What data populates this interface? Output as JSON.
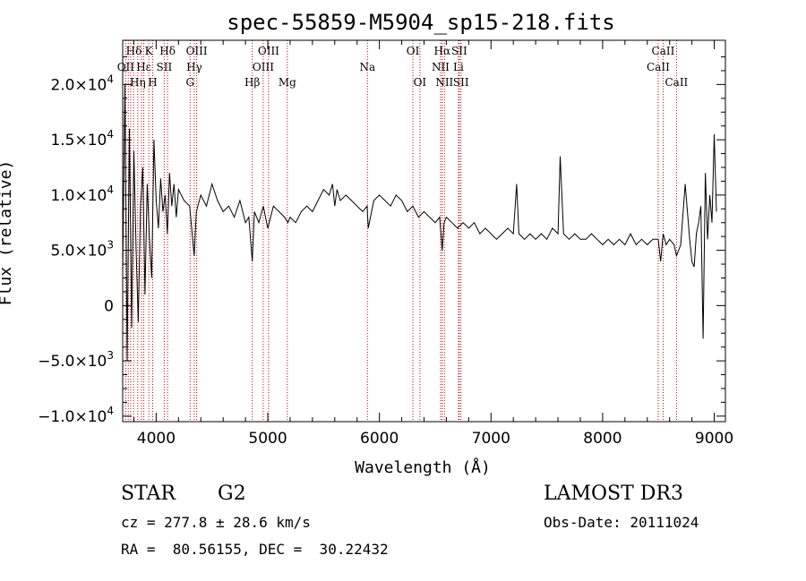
{
  "chart_data": {
    "type": "line",
    "title": "spec-55859-M5904_sp15-218.fits",
    "xlabel": "Wavelength (Å)",
    "ylabel": "Flux (relative)",
    "xlim": [
      3700,
      9100
    ],
    "ylim": [
      -10500,
      24000
    ],
    "x_ticks": [
      {
        "value": 4000,
        "label": "4000"
      },
      {
        "value": 5000,
        "label": "5000"
      },
      {
        "value": 6000,
        "label": "6000"
      },
      {
        "value": 7000,
        "label": "7000"
      },
      {
        "value": 8000,
        "label": "8000"
      },
      {
        "value": 9000,
        "label": "9000"
      }
    ],
    "y_ticks": [
      {
        "value": -10000,
        "mant": "−1.0×10",
        "exp": "4"
      },
      {
        "value": -5000,
        "mant": "−5.0×10",
        "exp": "3"
      },
      {
        "value": 0,
        "mant": "0",
        "exp": ""
      },
      {
        "value": 5000,
        "mant": "5.0×10",
        "exp": "3"
      },
      {
        "value": 10000,
        "mant": "1.0×10",
        "exp": "4"
      },
      {
        "value": 15000,
        "mant": "1.5×10",
        "exp": "4"
      },
      {
        "value": 20000,
        "mant": "2.0×10",
        "exp": "4"
      }
    ],
    "series": [
      {
        "name": "spectrum",
        "x": [
          3700,
          3720,
          3740,
          3760,
          3780,
          3800,
          3820,
          3840,
          3860,
          3880,
          3900,
          3920,
          3940,
          3960,
          3980,
          4000,
          4020,
          4040,
          4060,
          4080,
          4100,
          4120,
          4140,
          4160,
          4180,
          4200,
          4250,
          4300,
          4340,
          4360,
          4400,
          4450,
          4500,
          4550,
          4600,
          4650,
          4700,
          4750,
          4800,
          4830,
          4861,
          4880,
          4920,
          4960,
          5000,
          5050,
          5100,
          5150,
          5180,
          5200,
          5250,
          5300,
          5350,
          5400,
          5450,
          5500,
          5550,
          5580,
          5600,
          5620,
          5650,
          5700,
          5750,
          5800,
          5850,
          5890,
          5900,
          5950,
          6000,
          6050,
          6100,
          6150,
          6200,
          6250,
          6300,
          6350,
          6400,
          6450,
          6500,
          6540,
          6563,
          6580,
          6600,
          6650,
          6700,
          6750,
          6800,
          6850,
          6900,
          6950,
          7000,
          7050,
          7100,
          7150,
          7200,
          7230,
          7250,
          7300,
          7350,
          7400,
          7450,
          7500,
          7550,
          7600,
          7620,
          7650,
          7700,
          7750,
          7800,
          7850,
          7900,
          7950,
          8000,
          8050,
          8100,
          8150,
          8200,
          8250,
          8300,
          8350,
          8400,
          8450,
          8498,
          8520,
          8542,
          8570,
          8600,
          8640,
          8662,
          8700,
          8740,
          8780,
          8800,
          8820,
          8840,
          8860,
          8880,
          8900,
          8920,
          8940,
          8960,
          8980,
          9000,
          9020
        ],
        "y": [
          3000,
          20000,
          -5000,
          16000,
          -2000,
          14000,
          5000,
          -1500,
          9000,
          12500,
          1000,
          11000,
          6000,
          2500,
          15000,
          9500,
          7000,
          11500,
          8500,
          10000,
          6500,
          12000,
          9000,
          11000,
          8000,
          10500,
          9500,
          9000,
          4500,
          8500,
          10000,
          9000,
          11000,
          9500,
          8500,
          9000,
          8000,
          9500,
          7500,
          8000,
          4000,
          8500,
          7500,
          9000,
          7000,
          9000,
          8500,
          8000,
          7500,
          8000,
          7500,
          8500,
          9000,
          8500,
          9500,
          10500,
          10000,
          11000,
          9000,
          10500,
          9500,
          10000,
          9500,
          9000,
          8500,
          9000,
          7000,
          9500,
          10000,
          9500,
          9000,
          10000,
          9500,
          8500,
          9000,
          8000,
          8500,
          8000,
          7500,
          8000,
          5000,
          7500,
          8000,
          7500,
          7000,
          7500,
          7000,
          7500,
          6500,
          7000,
          6500,
          6000,
          6500,
          7000,
          6500,
          11000,
          6500,
          6000,
          6500,
          6000,
          6500,
          6000,
          7000,
          6500,
          13500,
          6500,
          6000,
          6500,
          6000,
          6000,
          6500,
          6000,
          5500,
          6000,
          5500,
          6000,
          5500,
          6500,
          5500,
          6000,
          5500,
          6000,
          6000,
          4000,
          6500,
          5500,
          6000,
          5500,
          4500,
          5500,
          11000,
          6000,
          4000,
          3500,
          6500,
          7500,
          9000,
          -3000,
          12000,
          6000,
          10000,
          7500,
          15500,
          8500
        ]
      }
    ],
    "line_markers": [
      {
        "wl": 3727,
        "top": "OII",
        "mid": "",
        "bot": ""
      },
      {
        "wl": 3750,
        "top": "",
        "mid": "",
        "bot": ""
      },
      {
        "wl": 3771,
        "top": "",
        "mid": "",
        "bot": ""
      },
      {
        "wl": 3798,
        "top": "",
        "mid": "",
        "bot": ""
      },
      {
        "wl": 3835,
        "top": "",
        "mid": "",
        "bot": ""
      },
      {
        "wl": 3869,
        "top": "",
        "mid": "",
        "bot": ""
      },
      {
        "wl": 3889,
        "top": "",
        "mid": "",
        "bot": ""
      },
      {
        "wl": 3934,
        "top": "",
        "mid": "",
        "bot": ""
      },
      {
        "wl": 3969,
        "top": "",
        "mid": "",
        "bot": ""
      },
      {
        "wl": 4072,
        "top": "",
        "mid": "",
        "bot": ""
      },
      {
        "wl": 4102,
        "top": "",
        "mid": "",
        "bot": ""
      },
      {
        "wl": 4304,
        "top": "",
        "mid": "",
        "bot": ""
      },
      {
        "wl": 4341,
        "top": "",
        "mid": "",
        "bot": ""
      },
      {
        "wl": 4363,
        "top": "",
        "mid": "",
        "bot": ""
      },
      {
        "wl": 4861,
        "top": "",
        "mid": "",
        "bot": ""
      },
      {
        "wl": 4959,
        "top": "",
        "mid": "",
        "bot": ""
      },
      {
        "wl": 5007,
        "top": "",
        "mid": "",
        "bot": ""
      },
      {
        "wl": 5175,
        "top": "",
        "mid": "",
        "bot": ""
      },
      {
        "wl": 5893,
        "top": "",
        "mid": "",
        "bot": ""
      },
      {
        "wl": 6300,
        "top": "",
        "mid": "",
        "bot": ""
      },
      {
        "wl": 6363,
        "top": "",
        "mid": "",
        "bot": ""
      },
      {
        "wl": 6548,
        "top": "",
        "mid": "",
        "bot": ""
      },
      {
        "wl": 6563,
        "top": "",
        "mid": "",
        "bot": ""
      },
      {
        "wl": 6583,
        "top": "",
        "mid": "",
        "bot": ""
      },
      {
        "wl": 6708,
        "top": "",
        "mid": "",
        "bot": ""
      },
      {
        "wl": 6716,
        "top": "",
        "mid": "",
        "bot": ""
      },
      {
        "wl": 6731,
        "top": "",
        "mid": "",
        "bot": ""
      },
      {
        "wl": 8498,
        "top": "",
        "mid": "",
        "bot": ""
      },
      {
        "wl": 8542,
        "top": "",
        "mid": "",
        "bot": ""
      },
      {
        "wl": 8662,
        "top": "",
        "mid": "",
        "bot": ""
      }
    ],
    "line_labels": [
      {
        "text": "Hδ",
        "wl": 3800,
        "row": 1
      },
      {
        "text": "K",
        "wl": 3934,
        "row": 1
      },
      {
        "text": "Hδ",
        "wl": 4102,
        "row": 1
      },
      {
        "text": "OIII",
        "wl": 4363,
        "row": 1
      },
      {
        "text": "OIII",
        "wl": 5007,
        "row": 1
      },
      {
        "text": "OI",
        "wl": 6300,
        "row": 1
      },
      {
        "text": "Hα",
        "wl": 6563,
        "row": 1
      },
      {
        "text": "SII",
        "wl": 6716,
        "row": 1
      },
      {
        "text": "CaII",
        "wl": 8542,
        "row": 1
      },
      {
        "text": "OII",
        "wl": 3727,
        "row": 2
      },
      {
        "text": "Hε",
        "wl": 3889,
        "row": 2
      },
      {
        "text": "SII",
        "wl": 4072,
        "row": 2
      },
      {
        "text": "Hγ",
        "wl": 4341,
        "row": 2
      },
      {
        "text": "OIII",
        "wl": 4959,
        "row": 2
      },
      {
        "text": "Na",
        "wl": 5893,
        "row": 2
      },
      {
        "text": "NII",
        "wl": 6548,
        "row": 2
      },
      {
        "text": "Li",
        "wl": 6708,
        "row": 2
      },
      {
        "text": "CaII",
        "wl": 8498,
        "row": 2
      },
      {
        "text": "Hη",
        "wl": 3835,
        "row": 3
      },
      {
        "text": "H",
        "wl": 3969,
        "row": 3
      },
      {
        "text": "G",
        "wl": 4304,
        "row": 3
      },
      {
        "text": "Hβ",
        "wl": 4861,
        "row": 3
      },
      {
        "text": "Mg",
        "wl": 5175,
        "row": 3
      },
      {
        "text": "OI",
        "wl": 6363,
        "row": 3
      },
      {
        "text": "NII",
        "wl": 6583,
        "row": 3
      },
      {
        "text": "SII",
        "wl": 6731,
        "row": 3
      },
      {
        "text": "CaII",
        "wl": 8662,
        "row": 3
      }
    ]
  },
  "info": {
    "class_label": "STAR",
    "subclass": "G2",
    "survey": "LAMOST DR3",
    "redshift": "cz = 277.8 ± 28.6 km/s",
    "obs_date": "Obs-Date: 20111024",
    "coords": "RA =  80.56155, DEC =  30.22432"
  },
  "colors": {
    "line_marker": "#cc0000",
    "axis": "#000000"
  }
}
